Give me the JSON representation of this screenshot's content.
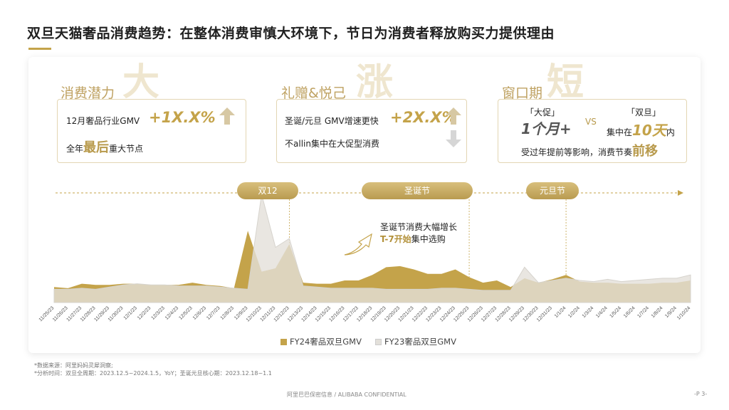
{
  "page": {
    "title": "双旦天猫奢品消费趋势：在整体消费审慎大环境下，节日为消费者释放购买力提供理由"
  },
  "sections": [
    {
      "head": "消费潜力",
      "big_char": "大",
      "line1_text": "12月奢品行业GMV",
      "line1_value": "+1X.X%",
      "line2_pre": "全年",
      "line2_emph": "最后",
      "line2_post": "重大节点"
    },
    {
      "head": "礼赠&悦己",
      "big_char": "涨",
      "line1_text": "圣诞/元旦 GMV增速更快",
      "line1_value": "+2X.X%",
      "line2_text": "不allin集中在大促型消费"
    },
    {
      "head": "窗口期",
      "big_char": "短",
      "left_label": "「大促」",
      "left_value": "1个月+",
      "vs": "VS",
      "right_label": "「双旦」",
      "right_pre": "集中在",
      "right_value": "10天",
      "right_post": "内",
      "bottom_pre": "受过年提前等影响，消费节奏",
      "bottom_emph": "前移"
    }
  ],
  "pills": [
    "双12",
    "圣诞节",
    "元旦节"
  ],
  "annotation": {
    "line1": "圣诞节消费大幅增长",
    "line2_hl": "T-7开始",
    "line2_rest": "集中选购"
  },
  "colors": {
    "fy24": "#C4A34A",
    "fy23": "#E3E0DA",
    "overlap": "#DDD0AE",
    "accent": "#C4A34A"
  },
  "icons": [
    "up-arrow-icon",
    "down-arrow-icon",
    "curved-arrow-icon",
    "timeline-arrow-icon"
  ],
  "chart_data": {
    "type": "area",
    "x": [
      "11/25/23",
      "11/26/23",
      "11/27/23",
      "11/28/23",
      "11/29/23",
      "11/30/23",
      "12/1/23",
      "12/2/23",
      "12/3/23",
      "12/4/23",
      "12/5/23",
      "12/6/23",
      "12/7/23",
      "12/8/23",
      "12/9/23",
      "12/10/23",
      "12/11/23",
      "12/12/23",
      "12/13/23",
      "12/14/23",
      "12/15/23",
      "12/16/23",
      "12/17/23",
      "12/18/23",
      "12/19/23",
      "12/20/23",
      "12/21/23",
      "12/22/23",
      "12/23/23",
      "12/24/23",
      "12/25/23",
      "12/26/23",
      "12/27/23",
      "12/28/23",
      "12/29/23",
      "12/30/23",
      "12/31/23",
      "1/1/24",
      "1/2/24",
      "1/3/24",
      "1/4/24",
      "1/5/24",
      "1/6/24",
      "1/7/24",
      "1/8/24",
      "1/9/24",
      "1/10/24"
    ],
    "series": [
      {
        "name": "FY24奢品双旦GMV",
        "values": [
          14,
          13,
          17,
          16,
          16,
          17,
          17,
          16,
          16,
          16,
          18,
          16,
          15,
          13,
          65,
          28,
          31,
          53,
          18,
          17,
          17,
          20,
          20,
          25,
          32,
          33,
          30,
          26,
          26,
          30,
          23,
          18,
          20,
          14,
          22,
          18,
          21,
          25,
          19,
          18,
          18,
          17,
          17,
          17,
          18,
          18,
          20
        ]
      },
      {
        "name": "FY23奢品双旦GMV",
        "values": [
          12,
          12,
          13,
          12,
          14,
          16,
          17,
          16,
          16,
          15,
          15,
          15,
          14,
          13,
          12,
          98,
          50,
          58,
          15,
          14,
          13,
          13,
          13,
          13,
          12,
          12,
          12,
          12,
          13,
          13,
          12,
          11,
          11,
          11,
          32,
          18,
          20,
          22,
          20,
          19,
          21,
          19,
          20,
          21,
          22,
          22,
          25
        ]
      }
    ],
    "legend_position": "bottom",
    "grid": false
  },
  "footnotes": {
    "line1": "*数据来源：阿里妈妈灵犀洞察;",
    "line2": "*分析时间：双旦全周期：2023.12.5~2024.1.5，YoY；圣诞元旦核心期：2023.12.18~1.1"
  },
  "footer": {
    "confidential": "阿里巴巴保密信息 / ALIBABA CONFIDENTIAL",
    "page_no": "-P 3-"
  }
}
